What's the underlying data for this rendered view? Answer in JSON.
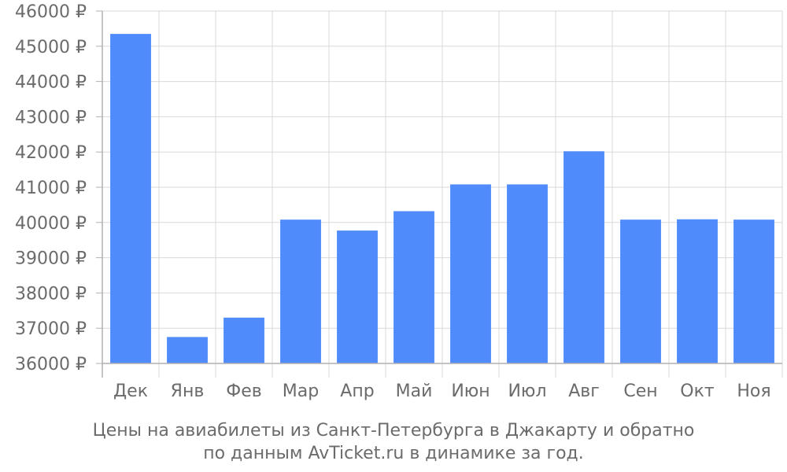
{
  "caption": {
    "line1": "Цены на авиабилеты из Санкт-Петербурга в Джакарту и обратно",
    "line2": "по данным AvTicket.ru в динамике за год."
  },
  "chart_data": {
    "type": "bar",
    "categories": [
      "Дек",
      "Янв",
      "Фев",
      "Мар",
      "Апр",
      "Май",
      "Июн",
      "Июл",
      "Авг",
      "Сен",
      "Окт",
      "Ноя"
    ],
    "values": [
      45350,
      36750,
      37300,
      40080,
      39770,
      40320,
      41080,
      41080,
      42020,
      40080,
      40090,
      40080
    ],
    "ylim": [
      36000,
      46000
    ],
    "yticks": [
      36000,
      37000,
      38000,
      39000,
      40000,
      41000,
      42000,
      43000,
      44000,
      45000,
      46000
    ],
    "ytick_labels": [
      "36000 ₽",
      "37000 ₽",
      "38000 ₽",
      "39000 ₽",
      "40000 ₽",
      "41000 ₽",
      "42000 ₽",
      "43000 ₽",
      "44000 ₽",
      "45000 ₽",
      "46000 ₽"
    ],
    "grid": true,
    "colors": {
      "bar": "#4f8bfb",
      "grid": "#d9d9d9",
      "axis": "#b0b0b0",
      "text": "#6b6b6b"
    }
  }
}
